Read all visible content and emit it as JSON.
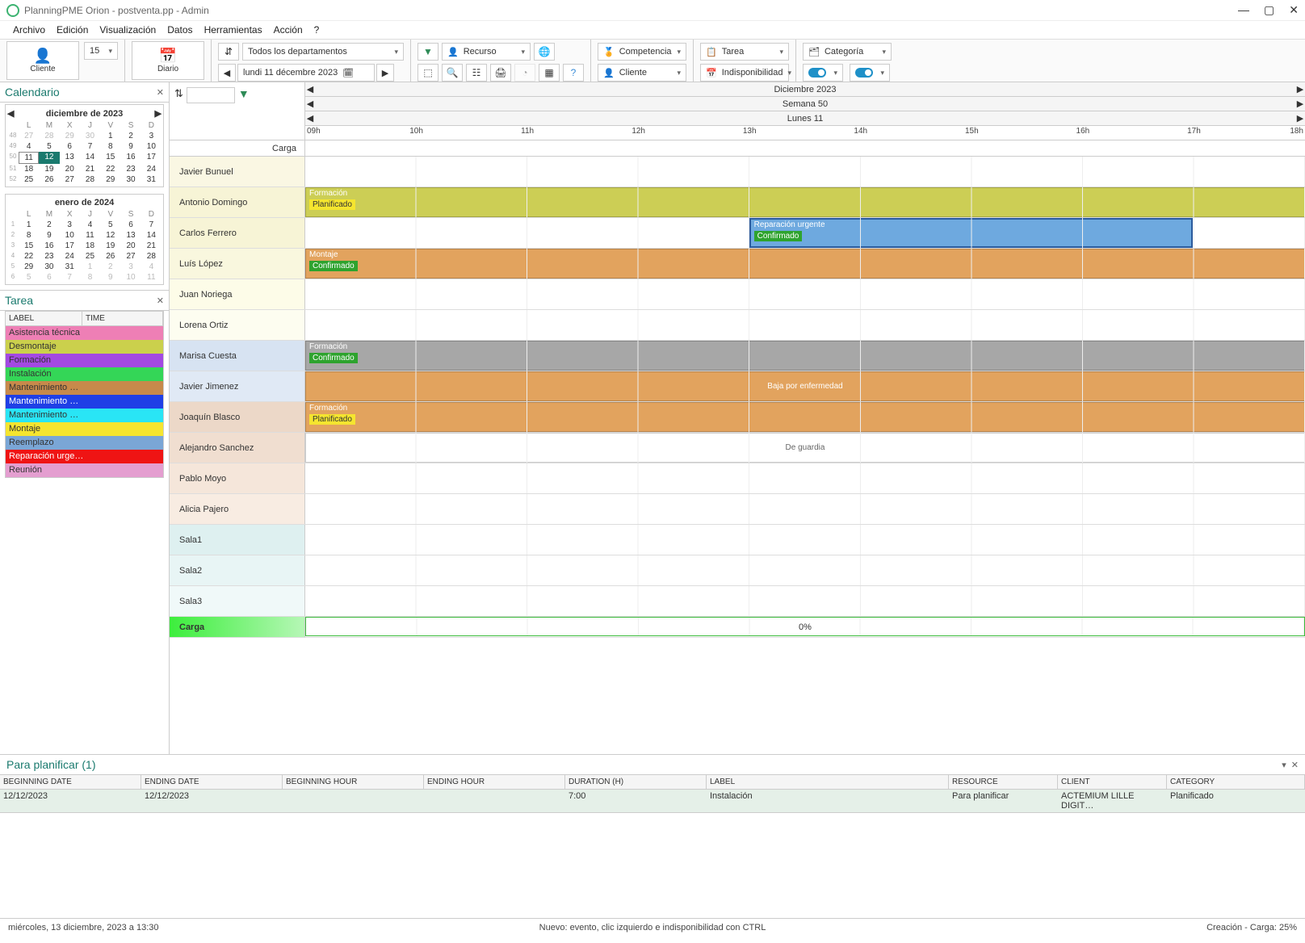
{
  "window": {
    "title": "PlanningPME Orion - postventa.pp - Admin"
  },
  "menus": [
    "Archivo",
    "Edición",
    "Visualización",
    "Datos",
    "Herramientas",
    "Acción",
    "?"
  ],
  "toolbar": {
    "cliente": "Cliente",
    "spin_value": "15",
    "diario": "Diario",
    "date_nav_text": "lundi   11 décembre  2023",
    "departments": "Todos los departamentos",
    "recurso": "Recurso",
    "competencia": "Competencia",
    "tarea": "Tarea",
    "categoria": "Categoría",
    "cliente2": "Cliente",
    "indisponibilidad": "Indisponibilidad"
  },
  "calendar_panel": {
    "title": "Calendario"
  },
  "cal1": {
    "title": "diciembre de 2023",
    "dow": [
      "L",
      "M",
      "X",
      "J",
      "V",
      "S",
      "D"
    ],
    "weeks": [
      "48",
      "49",
      "50",
      "51",
      "52"
    ],
    "days": [
      [
        {
          "n": "27",
          "o": 1
        },
        {
          "n": "28",
          "o": 1
        },
        {
          "n": "29",
          "o": 1
        },
        {
          "n": "30",
          "o": 1
        },
        {
          "n": "1"
        },
        {
          "n": "2"
        },
        {
          "n": "3"
        }
      ],
      [
        {
          "n": "4"
        },
        {
          "n": "5"
        },
        {
          "n": "6"
        },
        {
          "n": "7"
        },
        {
          "n": "8"
        },
        {
          "n": "9"
        },
        {
          "n": "10"
        }
      ],
      [
        {
          "n": "11",
          "sel": 1
        },
        {
          "n": "12",
          "today": 1
        },
        {
          "n": "13"
        },
        {
          "n": "14"
        },
        {
          "n": "15"
        },
        {
          "n": "16"
        },
        {
          "n": "17"
        }
      ],
      [
        {
          "n": "18"
        },
        {
          "n": "19"
        },
        {
          "n": "20"
        },
        {
          "n": "21"
        },
        {
          "n": "22"
        },
        {
          "n": "23"
        },
        {
          "n": "24"
        }
      ],
      [
        {
          "n": "25"
        },
        {
          "n": "26"
        },
        {
          "n": "27"
        },
        {
          "n": "28"
        },
        {
          "n": "29"
        },
        {
          "n": "30"
        },
        {
          "n": "31"
        }
      ]
    ]
  },
  "cal2": {
    "title": "enero de 2024",
    "dow": [
      "L",
      "M",
      "X",
      "J",
      "V",
      "S",
      "D"
    ],
    "weeks": [
      "1",
      "2",
      "3",
      "4",
      "5",
      "6"
    ],
    "days": [
      [
        {
          "n": "1"
        },
        {
          "n": "2"
        },
        {
          "n": "3"
        },
        {
          "n": "4"
        },
        {
          "n": "5"
        },
        {
          "n": "6"
        },
        {
          "n": "7"
        }
      ],
      [
        {
          "n": "8"
        },
        {
          "n": "9"
        },
        {
          "n": "10"
        },
        {
          "n": "11"
        },
        {
          "n": "12"
        },
        {
          "n": "13"
        },
        {
          "n": "14"
        }
      ],
      [
        {
          "n": "15"
        },
        {
          "n": "16"
        },
        {
          "n": "17"
        },
        {
          "n": "18"
        },
        {
          "n": "19"
        },
        {
          "n": "20"
        },
        {
          "n": "21"
        }
      ],
      [
        {
          "n": "22"
        },
        {
          "n": "23"
        },
        {
          "n": "24"
        },
        {
          "n": "25"
        },
        {
          "n": "26"
        },
        {
          "n": "27"
        },
        {
          "n": "28"
        }
      ],
      [
        {
          "n": "29"
        },
        {
          "n": "30"
        },
        {
          "n": "31"
        },
        {
          "n": "1",
          "o": 1
        },
        {
          "n": "2",
          "o": 1
        },
        {
          "n": "3",
          "o": 1
        },
        {
          "n": "4",
          "o": 1
        }
      ],
      [
        {
          "n": "5",
          "o": 1
        },
        {
          "n": "6",
          "o": 1
        },
        {
          "n": "7",
          "o": 1
        },
        {
          "n": "8",
          "o": 1
        },
        {
          "n": "9",
          "o": 1
        },
        {
          "n": "10",
          "o": 1
        },
        {
          "n": "11",
          "o": 1
        }
      ]
    ]
  },
  "tarea_panel": {
    "title": "Tarea",
    "cols": {
      "label": "LABEL",
      "time": "TIME"
    },
    "rows": [
      {
        "label": "Asistencia técnica",
        "color": "#ee7fb5"
      },
      {
        "label": "Desmontaje",
        "color": "#cbd04c"
      },
      {
        "label": "Formación",
        "color": "#a349e2"
      },
      {
        "label": "Instalación",
        "color": "#34d657"
      },
      {
        "label": "Mantenimiento …",
        "color": "#c78a4b"
      },
      {
        "label": "Mantenimiento …",
        "color": "#1f3fe6",
        "fg": "#fff"
      },
      {
        "label": "Mantenimiento …",
        "color": "#29e5f5"
      },
      {
        "label": "Montaje",
        "color": "#f5e52f"
      },
      {
        "label": "Reemplazo",
        "color": "#7aa6d6"
      },
      {
        "label": "Reparación urge…",
        "color": "#ef1414",
        "fg": "#fff"
      },
      {
        "label": "Reunión",
        "color": "#e49ed0"
      }
    ]
  },
  "sched": {
    "carga_label": "Carga",
    "month_line": "Diciembre 2023",
    "week_line": "Semana 50",
    "day_line": "Lunes 11",
    "hours": [
      "09h",
      "10h",
      "11h",
      "12h",
      "13h",
      "14h",
      "15h",
      "16h",
      "17h",
      "18h"
    ],
    "resources": [
      "Javier Bunuel",
      "Antonio Domingo",
      "Carlos Ferrero",
      "Luís López",
      "Juan Noriega",
      "Lorena Ortiz",
      "Marisa Cuesta",
      "Javier Jimenez",
      "Joaquín Blasco",
      "Alejandro Sanchez",
      "Pablo Moyo",
      "Alicia Pajero",
      "Sala1",
      "Sala2",
      "Sala3"
    ],
    "carga_row": "Carga",
    "carga_value": "0%",
    "events": [
      {
        "row": 1,
        "left_pct": 0,
        "width_pct": 100,
        "title": "Formación",
        "badge": "Planificado",
        "bg": "#ccce55",
        "badge_bg": "#f5e52f",
        "badge_fg": "#333"
      },
      {
        "row": 2,
        "left_pct": 44.4,
        "width_pct": 44.4,
        "title": "Reparación urgente",
        "badge": "Confirmado",
        "bg": "#6ea9df",
        "badge_bg": "#2ea32e",
        "badge_fg": "#fff",
        "selected": true
      },
      {
        "row": 3,
        "left_pct": 0,
        "width_pct": 100,
        "title": "Montaje",
        "badge": "Confirmado",
        "bg": "#e2a35e",
        "badge_bg": "#2ea32e",
        "badge_fg": "#fff"
      },
      {
        "row": 6,
        "left_pct": 0,
        "width_pct": 100,
        "title": "Formación",
        "badge": "Confirmado",
        "bg": "#a7a7a7",
        "badge_bg": "#2ea32e",
        "badge_fg": "#fff"
      },
      {
        "row": 7,
        "left_pct": 0,
        "width_pct": 100,
        "center_text": "Baja por enfermedad",
        "bg": "#e2a35e",
        "hatch": true
      },
      {
        "row": 8,
        "left_pct": 0,
        "width_pct": 100,
        "title": "Formación",
        "badge": "Planificado",
        "bg": "#e2a35e",
        "badge_bg": "#f5e52f",
        "badge_fg": "#333"
      },
      {
        "row": 9,
        "left_pct": 0,
        "width_pct": 100,
        "center_text": "De guardia",
        "bg": "#ffffff",
        "hatch": true
      }
    ]
  },
  "bottom": {
    "title": "Para planificar (1)",
    "cols": [
      "BEGINNING DATE",
      "ENDING DATE",
      "BEGINNING HOUR",
      "ENDING HOUR",
      "DURATION (H)",
      "LABEL",
      "RESOURCE",
      "CLIENT",
      "CATEGORY"
    ],
    "row": {
      "begin_date": "12/12/2023",
      "end_date": "12/12/2023",
      "begin_hour": "",
      "end_hour": "",
      "duration": "7:00",
      "label": "Instalación",
      "resource": "Para planificar",
      "client": "ACTEMIUM LILLE DIGIT…",
      "category": "Planificado"
    }
  },
  "status": {
    "left": "miércoles, 13 diciembre, 2023 a 13:30",
    "center": "Nuevo: evento, clic izquierdo e indisponibilidad con CTRL",
    "right": "Creación - Carga: 25%"
  }
}
